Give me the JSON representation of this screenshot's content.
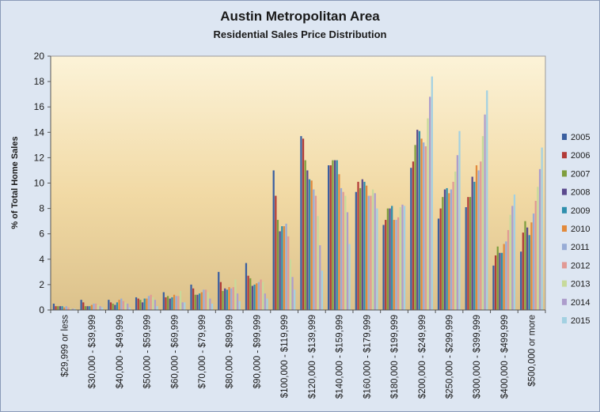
{
  "chart_data": {
    "type": "bar",
    "title": "Austin Metropolitan Area",
    "subtitle": "Residential Sales Price Distribution",
    "xlabel": "",
    "ylabel": "% of Total Home Sales",
    "ylim": [
      0,
      20
    ],
    "yticks": [
      0,
      2,
      4,
      6,
      8,
      10,
      12,
      14,
      16,
      18,
      20
    ],
    "grid": false,
    "legend_position": "right",
    "categories": [
      "$29,999 or less",
      "$30,000 - $39,999",
      "$40,000 - $49,999",
      "$50,000 - $59,999",
      "$60,000 - $69,999",
      "$70,000 - $79,999",
      "$80,000 - $89,999",
      "$90,000 - $99,999",
      "$100,000 - $119,999",
      "$120,000 - $139,999",
      "$140,000 - $159,999",
      "$160,000 - $179,999",
      "$180,000 - $199,999",
      "$200,000 - $249,999",
      "$250,000 - $299,999",
      "$300,000 - $399,999",
      "$400,000 - $499,999",
      "$500,000 or more"
    ],
    "series": [
      {
        "name": "2005",
        "color": "#3a5fa0",
        "values": [
          0.5,
          0.8,
          0.8,
          1.0,
          1.4,
          2.0,
          3.0,
          3.7,
          11.0,
          13.7,
          11.4,
          9.3,
          6.7,
          11.2,
          7.2,
          8.1,
          3.5,
          4.6
        ]
      },
      {
        "name": "2006",
        "color": "#b23b38",
        "values": [
          0.3,
          0.6,
          0.6,
          0.9,
          1.0,
          1.7,
          2.2,
          2.7,
          9.0,
          13.5,
          11.4,
          10.1,
          7.1,
          11.7,
          8.0,
          8.9,
          4.3,
          6.1
        ]
      },
      {
        "name": "2007",
        "color": "#7f9e3e",
        "values": [
          0.3,
          0.3,
          0.5,
          0.8,
          1.1,
          1.2,
          1.5,
          2.5,
          7.1,
          11.8,
          11.8,
          9.6,
          8.0,
          13.0,
          8.9,
          8.9,
          5.0,
          7.0
        ]
      },
      {
        "name": "2008",
        "color": "#5b4a8e",
        "values": [
          0.3,
          0.3,
          0.4,
          0.6,
          0.9,
          1.2,
          1.7,
          1.9,
          6.2,
          11.0,
          11.8,
          10.3,
          8.0,
          14.2,
          9.5,
          10.5,
          4.5,
          6.5
        ]
      },
      {
        "name": "2009",
        "color": "#2f8fad",
        "values": [
          0.3,
          0.3,
          0.6,
          0.9,
          1.0,
          1.3,
          1.6,
          2.0,
          6.6,
          10.3,
          11.8,
          10.1,
          8.2,
          14.1,
          9.6,
          10.1,
          4.5,
          5.9
        ]
      },
      {
        "name": "2010",
        "color": "#e28a3c",
        "values": [
          0.2,
          0.4,
          0.8,
          0.9,
          1.2,
          1.4,
          1.8,
          2.1,
          6.6,
          10.2,
          10.7,
          9.8,
          7.1,
          13.5,
          9.2,
          11.4,
          5.2,
          6.9
        ]
      },
      {
        "name": "2011",
        "color": "#98acd6",
        "values": [
          0.3,
          0.5,
          0.9,
          1.1,
          1.1,
          1.6,
          1.7,
          2.2,
          6.8,
          9.5,
          9.6,
          9.0,
          7.1,
          13.2,
          9.5,
          11.0,
          5.4,
          7.6
        ]
      },
      {
        "name": "2012",
        "color": "#e19a95",
        "values": [
          0.2,
          0.5,
          0.7,
          1.2,
          1.1,
          1.6,
          1.8,
          2.4,
          5.8,
          9.0,
          9.3,
          9.0,
          7.3,
          12.9,
          10.1,
          11.7,
          6.3,
          8.6
        ]
      },
      {
        "name": "2013",
        "color": "#c7da9b",
        "values": [
          0.1,
          0.4,
          0.6,
          1.0,
          1.5,
          1.4,
          2.4,
          2.2,
          4.0,
          7.4,
          9.0,
          9.5,
          8.1,
          15.1,
          10.9,
          13.7,
          7.5,
          9.7
        ]
      },
      {
        "name": "2014",
        "color": "#ad9dcc",
        "values": [
          0.1,
          0.3,
          0.5,
          0.8,
          0.6,
          0.9,
          1.3,
          1.3,
          2.6,
          5.1,
          7.7,
          9.2,
          8.3,
          16.8,
          12.2,
          15.4,
          8.2,
          11.1
        ]
      },
      {
        "name": "2015",
        "color": "#a3d1e2",
        "values": [
          0.1,
          0.2,
          0.2,
          0.3,
          0.6,
          0.5,
          0.7,
          0.9,
          1.6,
          3.1,
          5.2,
          8.0,
          8.2,
          18.4,
          14.1,
          17.3,
          9.1,
          12.8
        ]
      }
    ]
  }
}
